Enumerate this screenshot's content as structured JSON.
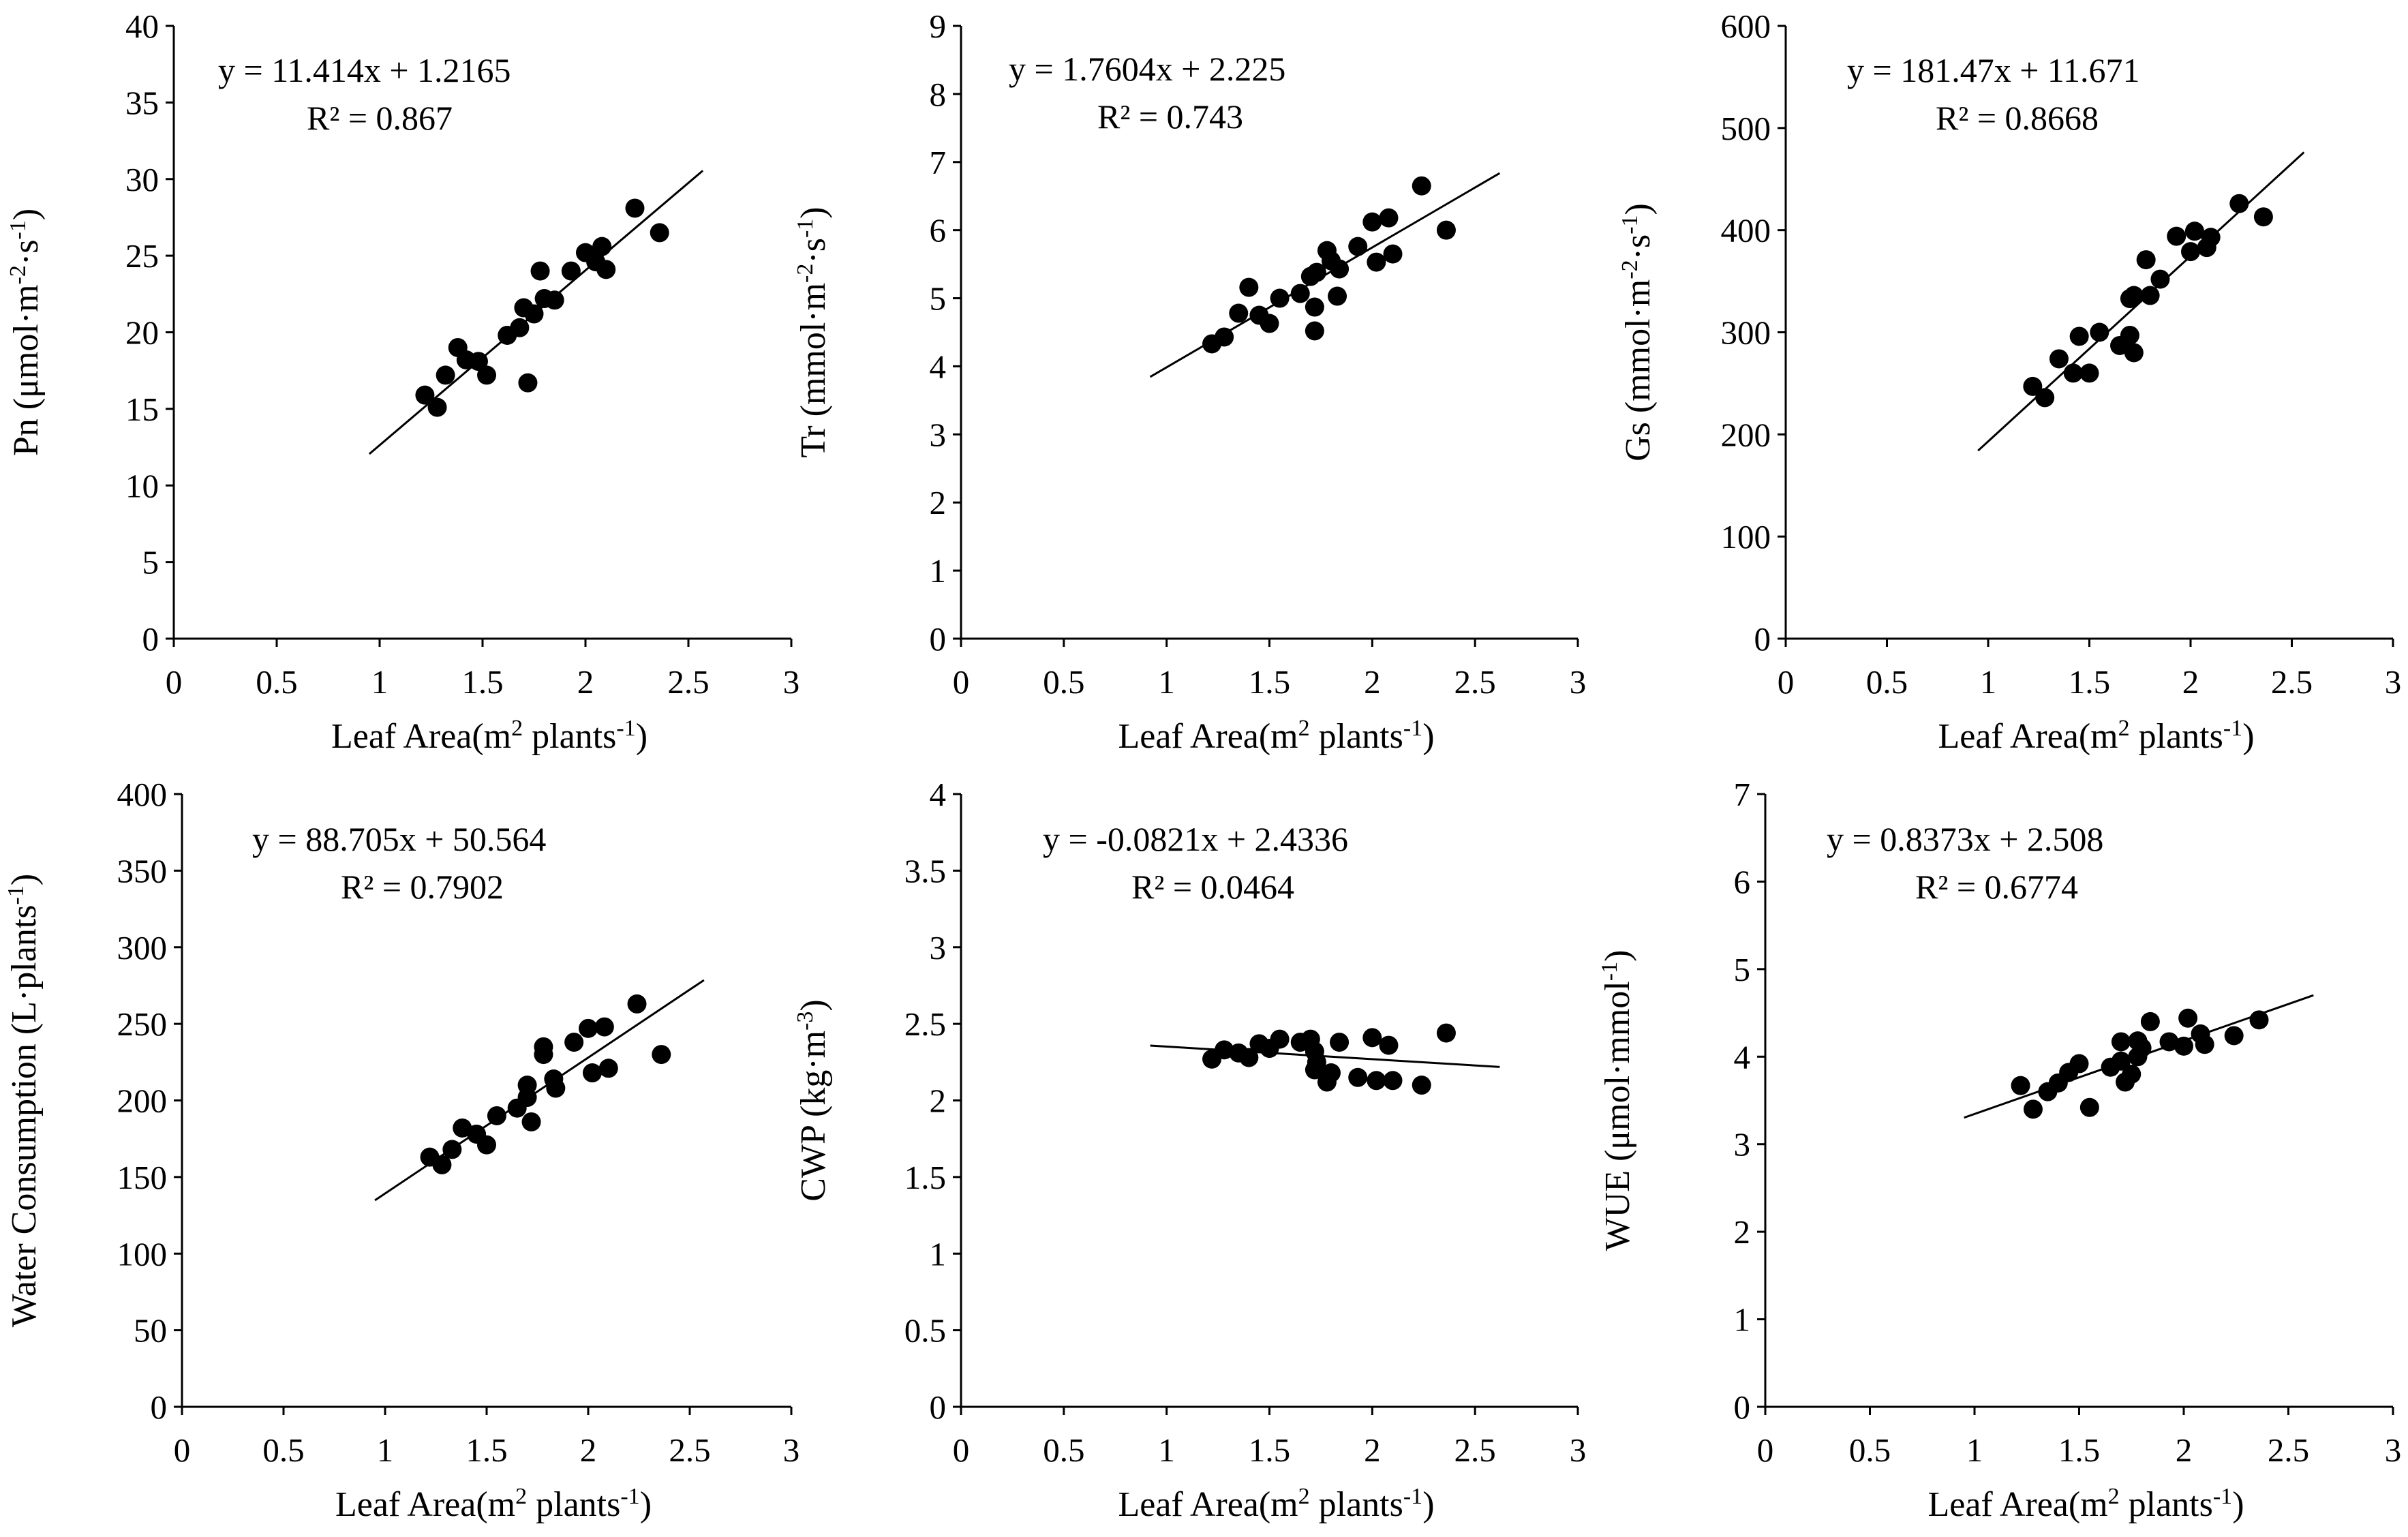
{
  "chart_data": [
    {
      "type": "scatter",
      "ylabel": "Pn (μmol·m",
      "ylabel_sup1": "-2",
      "ylabel_mid": "·s",
      "ylabel_sup2": "-1",
      "ylabel_end": ")",
      "xlabel": "Leaf Area(m",
      "xlabel_sup1": "2",
      "xlabel_mid": " plants",
      "xlabel_sup2": "-1",
      "xlabel_end": ")",
      "equation": "y = 11.414x + 1.2165",
      "r2": "R² = 0.867",
      "xlim": [
        0,
        3
      ],
      "ylim": [
        0,
        40
      ],
      "xticks": [
        "0",
        "0.5",
        "1",
        "1.5",
        "2",
        "2.5",
        "3"
      ],
      "yticks": [
        "0",
        "5",
        "10",
        "15",
        "20",
        "25",
        "30",
        "35",
        "40"
      ],
      "slope": 11.414,
      "intercept": 1.2165,
      "fit_x": [
        0.95,
        2.57
      ],
      "points": [
        [
          1.22,
          15.9
        ],
        [
          1.28,
          15.1
        ],
        [
          1.32,
          17.2
        ],
        [
          1.38,
          19.0
        ],
        [
          1.42,
          18.2
        ],
        [
          1.48,
          18.1
        ],
        [
          1.52,
          17.2
        ],
        [
          1.62,
          19.8
        ],
        [
          1.68,
          20.3
        ],
        [
          1.7,
          21.6
        ],
        [
          1.72,
          16.7
        ],
        [
          1.75,
          21.2
        ],
        [
          1.78,
          24.0
        ],
        [
          1.8,
          22.2
        ],
        [
          1.85,
          22.1
        ],
        [
          1.93,
          24.0
        ],
        [
          2.0,
          25.2
        ],
        [
          2.05,
          24.6
        ],
        [
          2.08,
          25.6
        ],
        [
          2.1,
          24.1
        ],
        [
          2.24,
          28.1
        ],
        [
          2.36,
          26.5
        ]
      ]
    },
    {
      "type": "scatter",
      "ylabel": "Tr (mmol·m",
      "ylabel_sup1": "-2",
      "ylabel_mid": "·s",
      "ylabel_sup2": "-1",
      "ylabel_end": ")",
      "xlabel": "Leaf Area(m",
      "xlabel_sup1": "2",
      "xlabel_mid": " plants",
      "xlabel_sup2": "-1",
      "xlabel_end": ")",
      "equation": "y = 1.7604x + 2.225",
      "r2": "R² = 0.743",
      "xlim": [
        0,
        3
      ],
      "ylim": [
        0,
        9
      ],
      "xticks": [
        "0",
        "0.5",
        "1",
        "1.5",
        "2",
        "2.5",
        "3"
      ],
      "yticks": [
        "0",
        "1",
        "2",
        "3",
        "4",
        "5",
        "6",
        "7",
        "8",
        "9"
      ],
      "slope": 1.7604,
      "intercept": 2.225,
      "fit_x": [
        0.92,
        2.62
      ],
      "points": [
        [
          1.22,
          4.33
        ],
        [
          1.28,
          4.43
        ],
        [
          1.35,
          4.78
        ],
        [
          1.4,
          5.16
        ],
        [
          1.45,
          4.75
        ],
        [
          1.5,
          4.63
        ],
        [
          1.55,
          5.0
        ],
        [
          1.65,
          5.07
        ],
        [
          1.7,
          5.32
        ],
        [
          1.72,
          4.52
        ],
        [
          1.73,
          5.38
        ],
        [
          1.72,
          4.87
        ],
        [
          1.78,
          5.7
        ],
        [
          1.8,
          5.55
        ],
        [
          1.83,
          5.03
        ],
        [
          1.84,
          5.43
        ],
        [
          1.93,
          5.76
        ],
        [
          2.0,
          6.12
        ],
        [
          2.02,
          5.53
        ],
        [
          2.08,
          6.18
        ],
        [
          2.1,
          5.65
        ],
        [
          2.24,
          6.65
        ],
        [
          2.36,
          6.0
        ]
      ]
    },
    {
      "type": "scatter",
      "ylabel": "Gs (mmol·m",
      "ylabel_sup1": "-2",
      "ylabel_mid": "·s",
      "ylabel_sup2": "-1",
      "ylabel_end": ")",
      "xlabel": "Leaf Area(m",
      "xlabel_sup1": "2",
      "xlabel_mid": " plants",
      "xlabel_sup2": "-1",
      "xlabel_end": ")",
      "equation": "y = 181.47x + 11.671",
      "r2": "R² = 0.8668",
      "xlim": [
        0,
        3
      ],
      "ylim": [
        0,
        600
      ],
      "xticks": [
        "0",
        "0.5",
        "1",
        "1.5",
        "2",
        "2.5",
        "3"
      ],
      "yticks": [
        "0",
        "100",
        "200",
        "300",
        "400",
        "500",
        "600"
      ],
      "slope": 181.47,
      "intercept": 11.671,
      "fit_x": [
        0.95,
        2.56
      ],
      "points": [
        [
          1.22,
          247
        ],
        [
          1.28,
          236
        ],
        [
          1.35,
          274
        ],
        [
          1.42,
          260
        ],
        [
          1.45,
          296
        ],
        [
          1.5,
          260
        ],
        [
          1.55,
          300
        ],
        [
          1.65,
          287
        ],
        [
          1.7,
          333
        ],
        [
          1.72,
          336
        ],
        [
          1.7,
          297
        ],
        [
          1.72,
          280
        ],
        [
          1.78,
          371
        ],
        [
          1.8,
          336
        ],
        [
          1.85,
          352
        ],
        [
          1.93,
          394
        ],
        [
          2.0,
          379
        ],
        [
          2.02,
          399
        ],
        [
          2.08,
          383
        ],
        [
          2.1,
          393
        ],
        [
          2.24,
          426
        ],
        [
          2.36,
          413
        ]
      ]
    },
    {
      "type": "scatter",
      "ylabel": "Water Consumption (L·plants",
      "ylabel_sup1": "-1",
      "ylabel_mid": "",
      "ylabel_sup2": "",
      "ylabel_end": ")",
      "xlabel": "Leaf Area(m",
      "xlabel_sup1": "2",
      "xlabel_mid": " plants",
      "xlabel_sup2": "-1",
      "xlabel_end": ")",
      "equation": "y = 88.705x + 50.564",
      "r2": "R² = 0.7902",
      "xlim": [
        0,
        3
      ],
      "ylim": [
        0,
        400
      ],
      "xticks": [
        "0",
        "0.5",
        "1",
        "1.5",
        "2",
        "2.5",
        "3"
      ],
      "yticks": [
        "0",
        "50",
        "100",
        "150",
        "200",
        "250",
        "300",
        "350",
        "400"
      ],
      "slope": 88.705,
      "intercept": 50.564,
      "fit_x": [
        0.95,
        2.57
      ],
      "points": [
        [
          1.22,
          163
        ],
        [
          1.28,
          158
        ],
        [
          1.33,
          168
        ],
        [
          1.38,
          182
        ],
        [
          1.45,
          178
        ],
        [
          1.5,
          171
        ],
        [
          1.55,
          190
        ],
        [
          1.65,
          195
        ],
        [
          1.7,
          210
        ],
        [
          1.7,
          202
        ],
        [
          1.72,
          186
        ],
        [
          1.78,
          235
        ],
        [
          1.78,
          230
        ],
        [
          1.83,
          214
        ],
        [
          1.84,
          208
        ],
        [
          1.93,
          238
        ],
        [
          2.0,
          247
        ],
        [
          2.02,
          218
        ],
        [
          2.08,
          248
        ],
        [
          2.1,
          221
        ],
        [
          2.24,
          263
        ],
        [
          2.36,
          230
        ]
      ]
    },
    {
      "type": "scatter",
      "ylabel": "CWP (kg·m",
      "ylabel_sup1": "-3",
      "ylabel_mid": "",
      "ylabel_sup2": "",
      "ylabel_end": ")",
      "xlabel": "Leaf Area(m",
      "xlabel_sup1": "2",
      "xlabel_mid": " plants",
      "xlabel_sup2": "-1",
      "xlabel_end": ")",
      "equation": "y = -0.0821x + 2.4336",
      "r2": "R² = 0.0464",
      "xlim": [
        0,
        3
      ],
      "ylim": [
        0,
        4
      ],
      "xticks": [
        "0",
        "0.5",
        "1",
        "1.5",
        "2",
        "2.5",
        "3"
      ],
      "yticks": [
        "0",
        "0.5",
        "1",
        "1.5",
        "2",
        "2.5",
        "3",
        "3.5",
        "4"
      ],
      "slope": -0.0821,
      "intercept": 2.4336,
      "fit_x": [
        0.92,
        2.62
      ],
      "points": [
        [
          1.22,
          2.27
        ],
        [
          1.28,
          2.33
        ],
        [
          1.35,
          2.31
        ],
        [
          1.4,
          2.28
        ],
        [
          1.45,
          2.37
        ],
        [
          1.5,
          2.34
        ],
        [
          1.55,
          2.4
        ],
        [
          1.65,
          2.38
        ],
        [
          1.7,
          2.4
        ],
        [
          1.72,
          2.2
        ],
        [
          1.72,
          2.32
        ],
        [
          1.73,
          2.25
        ],
        [
          1.78,
          2.12
        ],
        [
          1.8,
          2.18
        ],
        [
          1.84,
          2.38
        ],
        [
          1.93,
          2.15
        ],
        [
          2.0,
          2.41
        ],
        [
          2.02,
          2.13
        ],
        [
          2.08,
          2.36
        ],
        [
          2.1,
          2.13
        ],
        [
          2.24,
          2.1
        ],
        [
          2.36,
          2.44
        ]
      ]
    },
    {
      "type": "scatter",
      "ylabel": "WUE (μmol·mmol",
      "ylabel_sup1": "-1",
      "ylabel_mid": "",
      "ylabel_sup2": "",
      "ylabel_end": ")",
      "xlabel": "Leaf Area(m",
      "xlabel_sup1": "2",
      "xlabel_mid": " plants",
      "xlabel_sup2": "-1",
      "xlabel_end": ")",
      "equation": "y = 0.8373x + 2.508",
      "r2": "R² = 0.6774",
      "xlim": [
        0,
        3
      ],
      "ylim": [
        0,
        7
      ],
      "xticks": [
        "0",
        "0.5",
        "1",
        "1.5",
        "2",
        "2.5",
        "3"
      ],
      "yticks": [
        "0",
        "1",
        "2",
        "3",
        "4",
        "5",
        "6",
        "7"
      ],
      "slope": 0.8373,
      "intercept": 2.508,
      "fit_x": [
        0.95,
        2.62
      ],
      "points": [
        [
          1.22,
          3.67
        ],
        [
          1.28,
          3.4
        ],
        [
          1.35,
          3.6
        ],
        [
          1.4,
          3.7
        ],
        [
          1.45,
          3.82
        ],
        [
          1.5,
          3.92
        ],
        [
          1.55,
          3.42
        ],
        [
          1.65,
          3.88
        ],
        [
          1.7,
          3.95
        ],
        [
          1.7,
          4.17
        ],
        [
          1.72,
          3.71
        ],
        [
          1.75,
          3.8
        ],
        [
          1.78,
          4.18
        ],
        [
          1.78,
          4.0
        ],
        [
          1.8,
          4.1
        ],
        [
          1.84,
          4.4
        ],
        [
          1.93,
          4.17
        ],
        [
          2.0,
          4.12
        ],
        [
          2.02,
          4.44
        ],
        [
          2.08,
          4.26
        ],
        [
          2.1,
          4.14
        ],
        [
          2.24,
          4.24
        ],
        [
          2.36,
          4.42
        ]
      ]
    }
  ]
}
